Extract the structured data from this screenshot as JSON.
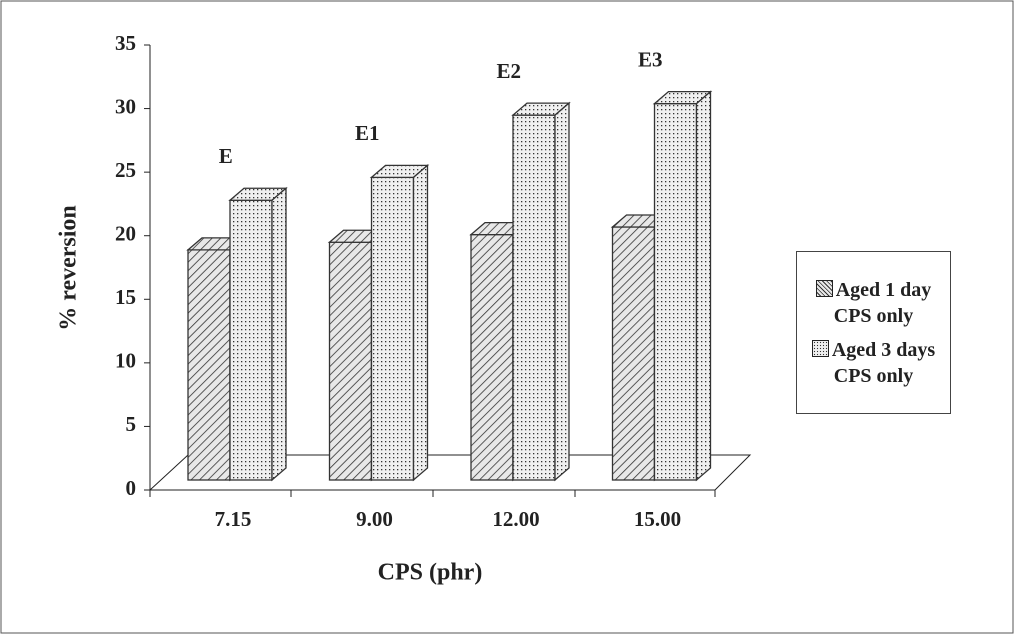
{
  "chart_data": {
    "type": "bar3d",
    "xlabel": "CPS (phr)",
    "ylabel": "% reversion",
    "categories": [
      "7.15",
      "9.00",
      "12.00",
      "15.00"
    ],
    "series": [
      {
        "name": "Aged 1 day CPS only",
        "color": "#333333",
        "pattern": "hatch",
        "values": [
          18.1,
          18.7,
          19.3,
          19.9
        ]
      },
      {
        "name": "Aged 3 days CPS only",
        "color": "#333333",
        "pattern": "dots",
        "values": [
          22.0,
          23.8,
          28.7,
          29.6
        ]
      }
    ],
    "annotations": [
      "E",
      "E1",
      "E2",
      "E3"
    ],
    "ylim": [
      0,
      35
    ],
    "yticks": [
      0,
      5,
      10,
      15,
      20,
      25,
      30,
      35
    ],
    "grid": false,
    "legend": "right"
  }
}
